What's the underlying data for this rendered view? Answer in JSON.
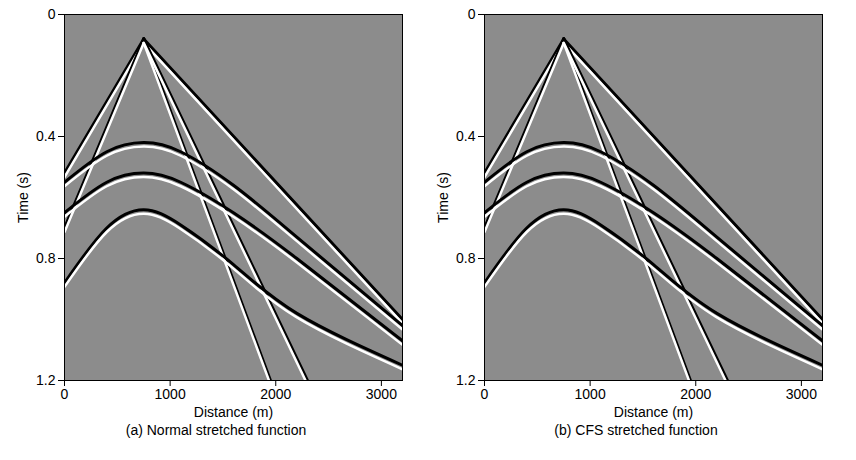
{
  "chart_data": [
    {
      "type": "line",
      "title": "(a) Normal stretched function",
      "xlabel": "Distance (m)",
      "ylabel": "Time (s)",
      "xlim": [
        0,
        3200
      ],
      "xticks": [
        0,
        1000,
        2000,
        3000
      ],
      "ylim": [
        0,
        1.2
      ],
      "yticks": [
        0,
        0.4,
        0.8,
        1.2
      ],
      "grid": false,
      "series": [
        {
          "color": "#000000",
          "x": [
            750,
            0
          ],
          "values": [
            0.08,
            0.52
          ]
        },
        {
          "color": "#000000",
          "x": [
            750,
            3200
          ],
          "values": [
            0.08,
            1.0
          ]
        },
        {
          "color": "#000000",
          "x": [
            750,
            0
          ],
          "values": [
            0.08,
            0.7
          ]
        },
        {
          "color": "#000000",
          "x": [
            750,
            1950
          ],
          "values": [
            0.08,
            1.2
          ]
        },
        {
          "color": "#000000",
          "x": [
            750,
            2300
          ],
          "values": [
            0.08,
            1.2
          ]
        },
        {
          "color": "#000000",
          "x": [
            0,
            400,
            750,
            1100,
            1600,
            2200,
            3200
          ],
          "values": [
            0.55,
            0.45,
            0.42,
            0.45,
            0.56,
            0.73,
            1.02
          ]
        },
        {
          "color": "#000000",
          "x": [
            0,
            400,
            750,
            1100,
            1600,
            2200,
            3200
          ],
          "values": [
            0.65,
            0.55,
            0.52,
            0.55,
            0.65,
            0.8,
            1.07
          ]
        },
        {
          "color": "#000000",
          "x": [
            0,
            400,
            750,
            1100,
            1600,
            2200,
            3200
          ],
          "values": [
            0.88,
            0.7,
            0.64,
            0.69,
            0.82,
            0.98,
            1.15
          ]
        }
      ]
    },
    {
      "type": "line",
      "title": "(b) CFS stretched function",
      "xlabel": "Distance (m)",
      "ylabel": "Time (s)",
      "xlim": [
        0,
        3200
      ],
      "xticks": [
        0,
        1000,
        2000,
        3000
      ],
      "ylim": [
        0,
        1.2
      ],
      "yticks": [
        0,
        0.4,
        0.8,
        1.2
      ],
      "grid": false,
      "series": [
        {
          "color": "#000000",
          "x": [
            750,
            0
          ],
          "values": [
            0.08,
            0.52
          ]
        },
        {
          "color": "#000000",
          "x": [
            750,
            3200
          ],
          "values": [
            0.08,
            1.0
          ]
        },
        {
          "color": "#000000",
          "x": [
            750,
            0
          ],
          "values": [
            0.08,
            0.7
          ]
        },
        {
          "color": "#000000",
          "x": [
            750,
            1950
          ],
          "values": [
            0.08,
            1.2
          ]
        },
        {
          "color": "#000000",
          "x": [
            750,
            2300
          ],
          "values": [
            0.08,
            1.2
          ]
        },
        {
          "color": "#000000",
          "x": [
            0,
            400,
            750,
            1100,
            1600,
            2200,
            3200
          ],
          "values": [
            0.55,
            0.45,
            0.42,
            0.45,
            0.56,
            0.73,
            1.02
          ]
        },
        {
          "color": "#000000",
          "x": [
            0,
            400,
            750,
            1100,
            1600,
            2200,
            3200
          ],
          "values": [
            0.65,
            0.55,
            0.52,
            0.55,
            0.65,
            0.8,
            1.07
          ]
        },
        {
          "color": "#000000",
          "x": [
            0,
            400,
            750,
            1100,
            1600,
            2200,
            3200
          ],
          "values": [
            0.88,
            0.7,
            0.64,
            0.69,
            0.82,
            0.98,
            1.15
          ]
        }
      ]
    }
  ]
}
